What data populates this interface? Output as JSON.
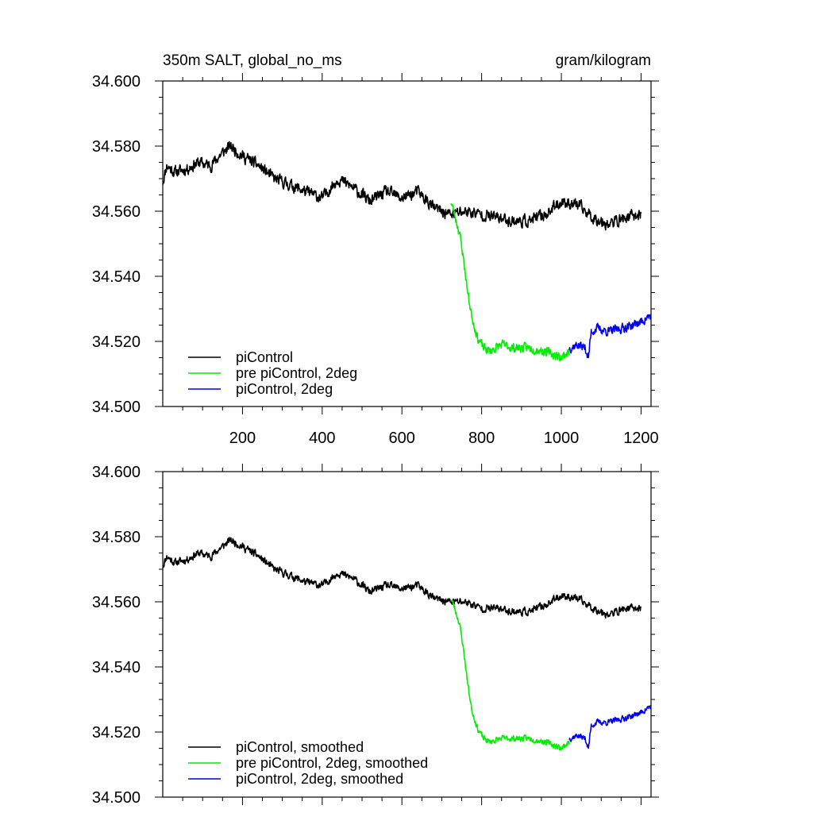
{
  "chart_data": [
    {
      "type": "line",
      "title": "350m SALT, global_no_ms",
      "units": "gram/kilogram",
      "xlim": [
        0,
        1225
      ],
      "ylim": [
        34.5,
        34.6
      ],
      "x_ticks": [
        200,
        400,
        600,
        800,
        1000,
        1200
      ],
      "y_ticks": [
        "34.500",
        "34.520",
        "34.540",
        "34.560",
        "34.580",
        "34.600"
      ],
      "legend_position": "bottom-left",
      "series": [
        {
          "name": "piControl",
          "color": "#000000",
          "noise": 0.0028,
          "seed": 11,
          "x": [
            0,
            10,
            30,
            60,
            90,
            120,
            150,
            170,
            200,
            240,
            280,
            320,
            360,
            400,
            440,
            480,
            520,
            560,
            600,
            640,
            680,
            720,
            760,
            800,
            840,
            880,
            920,
            960,
            1000,
            1040,
            1080,
            1120,
            1160,
            1200
          ],
          "y": [
            34.569,
            34.574,
            34.572,
            34.573,
            34.575,
            34.574,
            34.578,
            34.58,
            34.577,
            34.574,
            34.57,
            34.568,
            34.566,
            34.564,
            34.57,
            34.567,
            34.563,
            34.566,
            34.564,
            34.566,
            34.561,
            34.559,
            34.56,
            34.559,
            34.558,
            34.557,
            34.557,
            34.559,
            34.563,
            34.562,
            34.558,
            34.556,
            34.558,
            34.559
          ]
        },
        {
          "name": "pre piControl, 2deg",
          "color": "#00ee00",
          "noise": 0.0022,
          "seed": 23,
          "x": [
            723,
            730,
            745,
            755,
            765,
            775,
            790,
            805,
            820,
            850,
            880,
            920,
            960,
            1000,
            1020
          ],
          "y": [
            34.563,
            34.56,
            34.553,
            34.545,
            34.535,
            34.528,
            34.521,
            34.518,
            34.517,
            34.519,
            34.518,
            34.518,
            34.517,
            34.515,
            34.517
          ]
        },
        {
          "name": "piControl, 2deg",
          "color": "#0000ee",
          "noise": 0.0022,
          "seed": 37,
          "x": [
            1020,
            1040,
            1060,
            1068,
            1075,
            1090,
            1120,
            1150,
            1180,
            1200,
            1225
          ],
          "y": [
            34.518,
            34.519,
            34.518,
            34.515,
            34.523,
            34.524,
            34.523,
            34.524,
            34.525,
            34.526,
            34.528
          ]
        }
      ]
    },
    {
      "type": "line",
      "xlim": [
        0,
        1225
      ],
      "ylim": [
        34.5,
        34.6
      ],
      "y_ticks": [
        "34.500",
        "34.520",
        "34.540",
        "34.560",
        "34.580",
        "34.600"
      ],
      "legend_position": "bottom-left",
      "series": [
        {
          "name": "piControl, smoothed",
          "color": "#000000",
          "noise": 0.0018,
          "seed": 11,
          "x": [
            0,
            10,
            30,
            60,
            90,
            120,
            150,
            170,
            200,
            240,
            280,
            320,
            360,
            400,
            440,
            480,
            520,
            560,
            600,
            640,
            680,
            720,
            760,
            800,
            840,
            880,
            920,
            960,
            1000,
            1040,
            1080,
            1120,
            1160,
            1200
          ],
          "y": [
            34.571,
            34.574,
            34.572,
            34.573,
            34.575,
            34.574,
            34.577,
            34.579,
            34.577,
            34.574,
            34.57,
            34.568,
            34.566,
            34.565,
            34.569,
            34.567,
            34.563,
            34.565,
            34.564,
            34.565,
            34.561,
            34.56,
            34.56,
            34.558,
            34.558,
            34.557,
            34.557,
            34.559,
            34.562,
            34.561,
            34.558,
            34.556,
            34.558,
            34.558
          ]
        },
        {
          "name": "pre piControl, 2deg, smoothed",
          "color": "#00ee00",
          "noise": 0.0014,
          "seed": 23,
          "x": [
            723,
            730,
            745,
            755,
            765,
            775,
            790,
            805,
            820,
            850,
            880,
            920,
            960,
            1000,
            1020
          ],
          "y": [
            34.561,
            34.559,
            34.553,
            34.545,
            34.535,
            34.527,
            34.521,
            34.518,
            34.517,
            34.518,
            34.518,
            34.518,
            34.517,
            34.515,
            34.517
          ]
        },
        {
          "name": "piControl, 2deg, smoothed",
          "color": "#0000ee",
          "noise": 0.0014,
          "seed": 37,
          "x": [
            1020,
            1040,
            1060,
            1068,
            1075,
            1090,
            1120,
            1150,
            1180,
            1200,
            1225
          ],
          "y": [
            34.518,
            34.519,
            34.518,
            34.515,
            34.522,
            34.523,
            34.523,
            34.524,
            34.525,
            34.526,
            34.528
          ]
        }
      ]
    }
  ]
}
